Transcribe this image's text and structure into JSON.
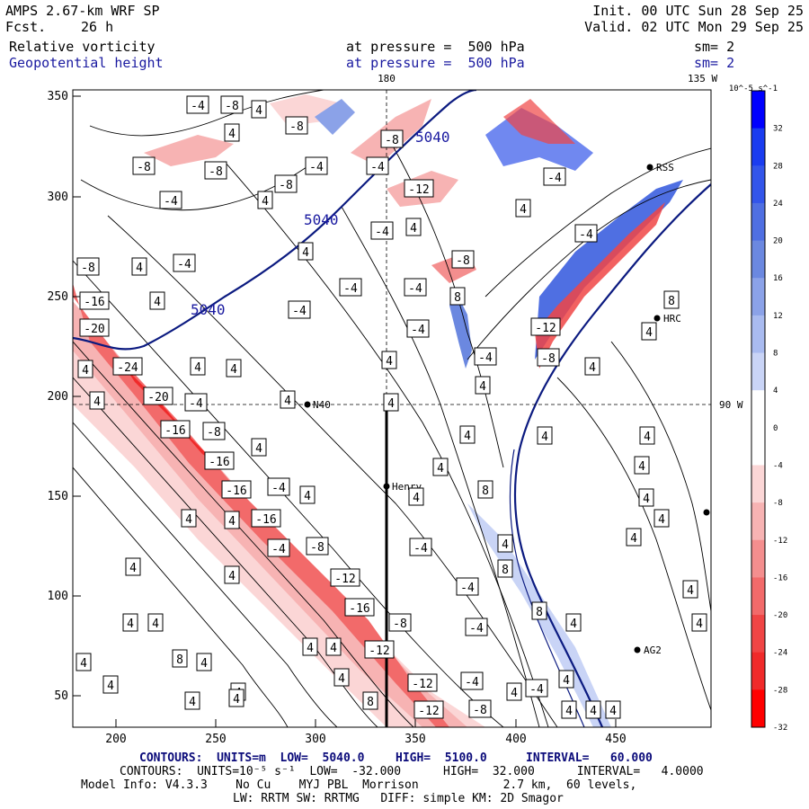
{
  "header": {
    "title": "AMPS 2.67-km WRF SP",
    "forecast_label": "Fcst.",
    "forecast_value": "26 h",
    "init": "Init. 00 UTC Sun 28 Sep 25",
    "valid": "Valid. 02 UTC Mon 29 Sep 25",
    "field1_name": "Relative vorticity",
    "field1_level": "at pressure =  500 hPa",
    "field1_sm": "sm= 2",
    "field2_name": "Geopotential height",
    "field2_level": "at pressure =  500 hPa",
    "field2_sm": "sm= 2"
  },
  "map": {
    "longitude_labels": [
      "180",
      "135 W",
      "90 W"
    ],
    "x_ticks": [
      "200",
      "250",
      "300",
      "350",
      "400",
      "450"
    ],
    "y_ticks": [
      "350",
      "300",
      "250",
      "200",
      "150",
      "100",
      "50"
    ],
    "stations": [
      "N40",
      "Henry",
      "HRC",
      "RSS",
      "AG2"
    ],
    "height_labels": [
      "5040",
      "5040",
      "5040"
    ],
    "vorticity_labels": [
      "4",
      "-4",
      "8",
      "-8",
      "-12",
      "-16",
      "-20",
      "-24"
    ]
  },
  "colorbar": {
    "unit_label": "10^-5 s^-1",
    "tick_labels": [
      "32",
      "28",
      "24",
      "20",
      "16",
      "12",
      "8",
      "4",
      "0",
      "-4",
      "-8",
      "-12",
      "-16",
      "-20",
      "-24",
      "-28",
      "-32"
    ],
    "colors": [
      "#0000ff",
      "#1a3cf0",
      "#3355ea",
      "#4f6fe2",
      "#6b88e0",
      "#8ba2e8",
      "#a9bbf0",
      "#c9d4f6",
      "#ffffff",
      "#ffffff",
      "#fbd6d6",
      "#f7b3b3",
      "#f48e8e",
      "#f26a6a",
      "#f04545",
      "#f02a2a",
      "#ff0000"
    ]
  },
  "footer": {
    "line1_label": "CONTOURS:  UNITS=m  LOW=  5040.0",
    "line1_high": "HIGH=  5100.0",
    "line1_interval": "INTERVAL=   60.000",
    "line2": "CONTOURS:  UNITS=10⁻⁵ s⁻¹  LOW=  -32.000      HIGH=  32.000      INTERVAL=   4.0000",
    "line3": "Model Info: V4.3.3    No Cu    MYJ PBL  Morrison            2.7 km,  60 levels,",
    "line4": "LW: RRTM SW: RRTMG   DIFF: simple KM: 2D Smagor"
  }
}
